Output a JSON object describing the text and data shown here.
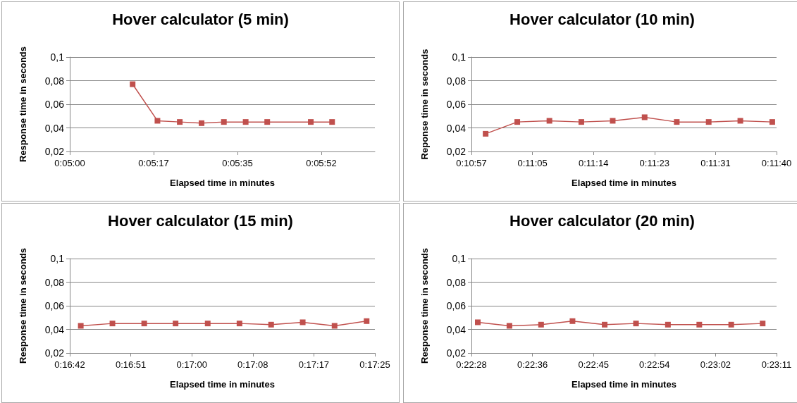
{
  "chart_data": [
    {
      "type": "line",
      "title": "Hover calculator (5 min)",
      "xlabel": "Elapsed time in minutes",
      "ylabel": "Response time in seconds",
      "marker": "square",
      "line_style": "solid",
      "grid": "y",
      "x": [
        0.086931,
        0.088353,
        0.089631,
        0.090878,
        0.092156,
        0.093403,
        0.094636,
        0.097131,
        0.09835
      ],
      "series": [
        {
          "color": "#c0504d",
          "values": [
            0.077,
            0.046,
            0.045,
            0.044,
            0.045,
            0.045,
            0.045,
            0.045,
            0.045
          ]
        }
      ],
      "xlim": [
        0.0833333,
        0.1008
      ],
      "xticks": [
        {
          "value": 0.0833333,
          "label": "0:05:00"
        },
        {
          "value": 0.0881333,
          "label": "0:05:17"
        },
        {
          "value": 0.0929333,
          "label": "0:05:35"
        },
        {
          "value": 0.0977333,
          "label": "0:05:52"
        }
      ],
      "ylim": [
        0.02,
        0.1
      ],
      "yticks": [
        {
          "value": 0.02,
          "label": "0,02"
        },
        {
          "value": 0.04,
          "label": "0,04"
        },
        {
          "value": 0.06,
          "label": "0,06"
        },
        {
          "value": 0.08,
          "label": "0,08"
        },
        {
          "value": 0.1,
          "label": "0,1"
        }
      ]
    },
    {
      "type": "line",
      "title": "Hover calculator (10 min)",
      "xlabel": "Elapsed time in minutes",
      "ylabel": "Reponse time in seconds",
      "marker": "square",
      "line_style": "solid",
      "grid": "y",
      "x": [
        0.182958,
        0.184203,
        0.185467,
        0.186722,
        0.187956,
        0.189211,
        0.190475,
        0.191731,
        0.192975,
        0.194231
      ],
      "series": [
        {
          "color": "#c0504d",
          "values": [
            0.035,
            0.045,
            0.046,
            0.045,
            0.046,
            0.049,
            0.045,
            0.045,
            0.046,
            0.045
          ]
        }
      ],
      "xlim": [
        0.1824,
        0.1944
      ],
      "xticks": [
        {
          "value": 0.1824,
          "label": "0:10:57"
        },
        {
          "value": 0.1848,
          "label": "0:11:05"
        },
        {
          "value": 0.1872,
          "label": "0:11:14"
        },
        {
          "value": 0.1896,
          "label": "0:11:23"
        },
        {
          "value": 0.192,
          "label": "0:11:31"
        },
        {
          "value": 0.1944,
          "label": "0:11:40"
        }
      ],
      "ylim": [
        0.02,
        0.1
      ],
      "yticks": [
        {
          "value": 0.02,
          "label": "0,02"
        },
        {
          "value": 0.04,
          "label": "0,04"
        },
        {
          "value": 0.06,
          "label": "0,06"
        },
        {
          "value": 0.08,
          "label": "0,08"
        },
        {
          "value": 0.1,
          "label": "0,1"
        }
      ]
    },
    {
      "type": "line",
      "title": "Hover calculator (15 min)",
      "xlabel": "Elapsed time in minutes",
      "ylabel": "Response time in seconds",
      "marker": "square",
      "line_style": "solid",
      "grid": "y",
      "x": [
        0.278833,
        0.280078,
        0.281328,
        0.282561,
        0.283825,
        0.285075,
        0.286319,
        0.287561,
        0.288814,
        0.290075
      ],
      "series": [
        {
          "color": "#c0504d",
          "values": [
            0.043,
            0.045,
            0.045,
            0.045,
            0.045,
            0.045,
            0.044,
            0.046,
            0.043,
            0.047
          ]
        }
      ],
      "xlim": [
        0.2784,
        0.2904
      ],
      "xticks": [
        {
          "value": 0.2784,
          "label": "0:16:42"
        },
        {
          "value": 0.2808,
          "label": "0:16:51"
        },
        {
          "value": 0.2832,
          "label": "0:17:00"
        },
        {
          "value": 0.2856,
          "label": "0:17:08"
        },
        {
          "value": 0.288,
          "label": "0:17:17"
        },
        {
          "value": 0.2904,
          "label": "0:17:25"
        }
      ],
      "ylim": [
        0.02,
        0.1
      ],
      "yticks": [
        {
          "value": 0.02,
          "label": "0,02"
        },
        {
          "value": 0.04,
          "label": "0,04"
        },
        {
          "value": 0.06,
          "label": "0,06"
        },
        {
          "value": 0.08,
          "label": "0,08"
        },
        {
          "value": 0.1,
          "label": "0,1"
        }
      ]
    },
    {
      "type": "line",
      "title": "Hover calculator (20 min)",
      "xlabel": "Elapsed time in minutes",
      "ylabel": "Response time in seconds",
      "marker": "square",
      "line_style": "solid",
      "grid": "y",
      "x": [
        0.37465,
        0.375894,
        0.377139,
        0.378375,
        0.379639,
        0.380872,
        0.382128,
        0.383361,
        0.384617,
        0.385853
      ],
      "series": [
        {
          "color": "#c0504d",
          "values": [
            0.046,
            0.043,
            0.044,
            0.047,
            0.044,
            0.045,
            0.044,
            0.044,
            0.044,
            0.045
          ]
        }
      ],
      "xlim": [
        0.3744,
        0.3864
      ],
      "xticks": [
        {
          "value": 0.3744,
          "label": "0:22:28"
        },
        {
          "value": 0.3768,
          "label": "0:22:36"
        },
        {
          "value": 0.3792,
          "label": "0:22:45"
        },
        {
          "value": 0.3816,
          "label": "0:22:54"
        },
        {
          "value": 0.384,
          "label": "0:23:02"
        },
        {
          "value": 0.3864,
          "label": "0:23:11"
        }
      ],
      "ylim": [
        0.02,
        0.1
      ],
      "yticks": [
        {
          "value": 0.02,
          "label": "0,02"
        },
        {
          "value": 0.04,
          "label": "0,04"
        },
        {
          "value": 0.06,
          "label": "0,06"
        },
        {
          "value": 0.08,
          "label": "0,08"
        },
        {
          "value": 0.1,
          "label": "0,1"
        }
      ]
    }
  ]
}
